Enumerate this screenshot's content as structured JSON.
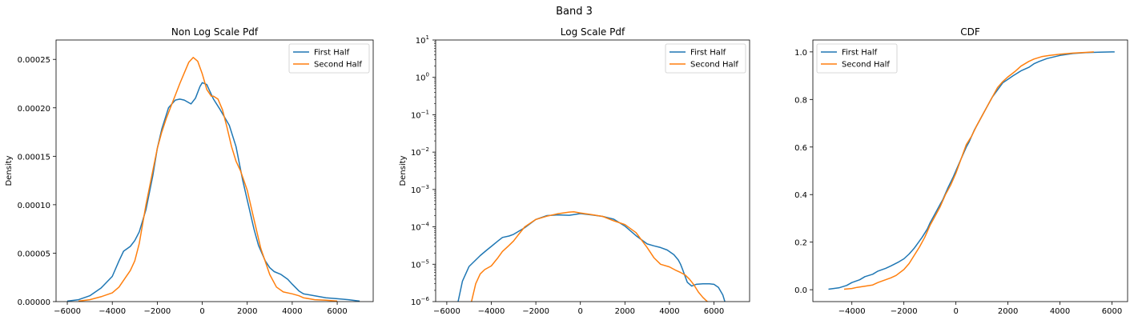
{
  "figure": {
    "suptitle": "Band 3"
  },
  "colors": {
    "first_half": "#1f77b4",
    "second_half": "#ff7f0e",
    "axes": "#000000"
  },
  "chart_data": [
    {
      "type": "line",
      "title": "Non Log Scale Pdf",
      "xlabel": "",
      "ylabel": "Density",
      "xlim": [
        -6500,
        7600
      ],
      "ylim": [
        0,
        0.00027
      ],
      "xticks": [
        -6000,
        -4000,
        -2000,
        0,
        2000,
        4000,
        6000
      ],
      "xtick_labels": [
        "−6000",
        "−4000",
        "−2000",
        "0",
        "2000",
        "4000",
        "6000"
      ],
      "yticks": [
        0,
        5e-05,
        0.0001,
        0.00015,
        0.0002,
        0.00025
      ],
      "ytick_labels": [
        "0.00000",
        "0.00005",
        "0.00010",
        "0.00015",
        "0.00020",
        "0.00025"
      ],
      "grid": false,
      "legend": "top-right",
      "series": [
        {
          "name": "First Half",
          "x": [
            -6000,
            -5500,
            -5000,
            -4500,
            -4000,
            -3700,
            -3500,
            -3200,
            -3000,
            -2800,
            -2500,
            -2200,
            -2000,
            -1800,
            -1500,
            -1200,
            -1000,
            -800,
            -500,
            -300,
            -100,
            0,
            200,
            300,
            500,
            800,
            1000,
            1200,
            1500,
            1800,
            2000,
            2300,
            2500,
            2800,
            3000,
            3200,
            3500,
            3800,
            4000,
            4300,
            4500,
            5000,
            5500,
            6000,
            6500,
            7000
          ],
          "y": [
            5e-07,
            2e-06,
            6e-06,
            1.4e-05,
            2.6e-05,
            4.2e-05,
            5.2e-05,
            5.7e-05,
            6.3e-05,
            7.2e-05,
            9.5e-05,
            0.00013,
            0.000158,
            0.000178,
            0.0002,
            0.000208,
            0.000209,
            0.000208,
            0.000204,
            0.00021,
            0.000222,
            0.000226,
            0.000224,
            0.000219,
            0.000209,
            0.000198,
            0.00019,
            0.000182,
            0.00016,
            0.000125,
            0.000105,
            7.5e-05,
            5.8e-05,
            4.2e-05,
            3.5e-05,
            3.1e-05,
            2.8e-05,
            2.3e-05,
            1.8e-05,
            1.1e-05,
            8e-06,
            6e-06,
            4e-06,
            3e-06,
            2e-06,
            5e-07
          ]
        },
        {
          "name": "Second Half",
          "x": [
            -5500,
            -5000,
            -4500,
            -4000,
            -3700,
            -3500,
            -3200,
            -3000,
            -2800,
            -2500,
            -2200,
            -2000,
            -1800,
            -1600,
            -1400,
            -1200,
            -1000,
            -800,
            -600,
            -400,
            -200,
            0,
            200,
            400,
            500,
            700,
            900,
            1100,
            1300,
            1500,
            1700,
            2000,
            2300,
            2600,
            3000,
            3300,
            3600,
            4000,
            4300,
            4500,
            5000,
            5500,
            6000
          ],
          "y": [
            5e-07,
            2e-06,
            5e-06,
            9e-06,
            1.5e-05,
            2.2e-05,
            3.2e-05,
            4.2e-05,
            6e-05,
            0.0001,
            0.000135,
            0.000158,
            0.000175,
            0.000189,
            0.000201,
            0.000213,
            0.000225,
            0.000236,
            0.000247,
            0.000252,
            0.000248,
            0.000235,
            0.000219,
            0.000212,
            0.000212,
            0.000209,
            0.000198,
            0.00018,
            0.00016,
            0.000145,
            0.000135,
            0.000115,
            8.5e-05,
            5.5e-05,
            2.8e-05,
            1.5e-05,
            1e-05,
            8e-06,
            6e-06,
            4e-06,
            2e-06,
            1.5e-06,
            5e-07
          ]
        }
      ]
    },
    {
      "type": "line",
      "title": "Log Scale Pdf",
      "xlabel": "",
      "ylabel": "Density",
      "yscale": "log",
      "xlim": [
        -6500,
        7600
      ],
      "ylim": [
        1e-06,
        10
      ],
      "xticks": [
        -6000,
        -4000,
        -2000,
        0,
        2000,
        4000,
        6000
      ],
      "xtick_labels": [
        "−6000",
        "−4000",
        "−2000",
        "0",
        "2000",
        "4000",
        "6000"
      ],
      "yticks": [
        1e-06,
        1e-05,
        0.0001,
        0.001,
        0.01,
        0.1,
        1,
        10
      ],
      "ytick_exponents": [
        "−6",
        "−5",
        "−4",
        "−3",
        "−2",
        "−1",
        "0",
        "1"
      ],
      "grid": false,
      "legend": "top-right",
      "series": [
        {
          "name": "First Half",
          "x": [
            -5500,
            -5300,
            -5000,
            -4700,
            -4500,
            -4200,
            -4000,
            -3700,
            -3500,
            -3200,
            -3000,
            -2500,
            -2000,
            -1500,
            -1000,
            -500,
            0,
            500,
            1000,
            1500,
            2000,
            2500,
            3000,
            3300,
            3600,
            3900,
            4200,
            4400,
            4500,
            4600,
            4700,
            4800,
            5000,
            5200,
            5500,
            5800,
            6000,
            6200,
            6400,
            6500
          ],
          "y": [
            9.5e-07,
            3.5e-06,
            8.7e-06,
            1.3e-05,
            1.7e-05,
            2.4e-05,
            3e-05,
            4.2e-05,
            5.2e-05,
            5.7e-05,
            6.3e-05,
            9.5e-05,
            0.000158,
            0.0002,
            0.000209,
            0.000204,
            0.000226,
            0.000209,
            0.00019,
            0.00016,
            0.000105,
            5.8e-05,
            3.5e-05,
            3.1e-05,
            2.8e-05,
            2.4e-05,
            1.8e-05,
            1.3e-05,
            1e-05,
            7e-06,
            4.8e-06,
            3.3e-06,
            2.6e-06,
            2.9e-06,
            3e-06,
            3e-06,
            2.9e-06,
            2.4e-06,
            1.5e-06,
            9.5e-07
          ]
        },
        {
          "name": "Second Half",
          "x": [
            -4900,
            -4700,
            -4500,
            -4300,
            -4000,
            -3700,
            -3500,
            -3200,
            -3000,
            -2800,
            -2500,
            -2000,
            -1500,
            -1000,
            -500,
            -300,
            0,
            500,
            1000,
            1500,
            2000,
            2500,
            3000,
            3300,
            3600,
            4000,
            4300,
            4500,
            4700,
            4900,
            5100,
            5300,
            5500,
            5700,
            5800
          ],
          "y": [
            9.5e-07,
            3e-06,
            5.5e-06,
            7.2e-06,
            9e-06,
            1.5e-05,
            2.2e-05,
            3.2e-05,
            4.2e-05,
            6e-05,
            0.0001,
            0.000158,
            0.000193,
            0.000225,
            0.000249,
            0.000252,
            0.000235,
            0.000212,
            0.00019,
            0.000145,
            0.000115,
            7e-05,
            2.8e-05,
            1.5e-05,
            1e-05,
            8.5e-06,
            6.8e-06,
            6e-06,
            5.2e-06,
            4e-06,
            2.8e-06,
            1.8e-06,
            1.3e-06,
            1e-06,
            9.5e-07
          ]
        }
      ]
    },
    {
      "type": "line",
      "title": "CDF",
      "xlabel": "",
      "ylabel": "",
      "xlim": [
        -5500,
        6600
      ],
      "ylim": [
        -0.05,
        1.05
      ],
      "xticks": [
        -4000,
        -2000,
        0,
        2000,
        4000,
        6000
      ],
      "xtick_labels": [
        "−4000",
        "−2000",
        "0",
        "2000",
        "4000",
        "6000"
      ],
      "yticks": [
        0,
        0.2,
        0.4,
        0.6,
        0.8,
        1.0
      ],
      "ytick_labels": [
        "0.0",
        "0.2",
        "0.4",
        "0.6",
        "0.8",
        "1.0"
      ],
      "grid": false,
      "legend": "top-left",
      "series": [
        {
          "name": "First Half",
          "x": [
            -4900,
            -4500,
            -4200,
            -4000,
            -3700,
            -3500,
            -3200,
            -3000,
            -2700,
            -2500,
            -2200,
            -2000,
            -1800,
            -1600,
            -1500,
            -1300,
            -1100,
            -1000,
            -800,
            -600,
            -500,
            -300,
            -100,
            0,
            200,
            400,
            500,
            700,
            900,
            1000,
            1200,
            1400,
            1600,
            1800,
            2000,
            2200,
            2500,
            2800,
            3000,
            3200,
            3500,
            4000,
            4500,
            5000,
            5500,
            6000,
            6100
          ],
          "y": [
            0.002,
            0.008,
            0.018,
            0.03,
            0.042,
            0.055,
            0.065,
            0.078,
            0.09,
            0.1,
            0.117,
            0.13,
            0.15,
            0.175,
            0.19,
            0.22,
            0.255,
            0.28,
            0.32,
            0.36,
            0.38,
            0.43,
            0.475,
            0.5,
            0.55,
            0.6,
            0.62,
            0.67,
            0.71,
            0.73,
            0.77,
            0.81,
            0.84,
            0.87,
            0.885,
            0.9,
            0.92,
            0.935,
            0.95,
            0.96,
            0.972,
            0.985,
            0.993,
            0.997,
            0.999,
            1.0,
            1.0
          ]
        },
        {
          "name": "Second Half",
          "x": [
            -4300,
            -4000,
            -3800,
            -3500,
            -3200,
            -3000,
            -2800,
            -2500,
            -2300,
            -2000,
            -1800,
            -1600,
            -1400,
            -1200,
            -1000,
            -800,
            -600,
            -400,
            -200,
            0,
            200,
            400,
            600,
            800,
            1000,
            1200,
            1400,
            1600,
            1800,
            2000,
            2300,
            2500,
            2800,
            3000,
            3300,
            3600,
            4000,
            4500,
            5000,
            5300
          ],
          "y": [
            0.002,
            0.005,
            0.01,
            0.015,
            0.02,
            0.03,
            0.038,
            0.05,
            0.06,
            0.085,
            0.11,
            0.145,
            0.18,
            0.22,
            0.27,
            0.31,
            0.35,
            0.4,
            0.44,
            0.49,
            0.55,
            0.61,
            0.645,
            0.69,
            0.73,
            0.77,
            0.81,
            0.85,
            0.875,
            0.895,
            0.92,
            0.94,
            0.96,
            0.97,
            0.98,
            0.985,
            0.99,
            0.995,
            0.998,
            1.0
          ]
        }
      ]
    }
  ]
}
